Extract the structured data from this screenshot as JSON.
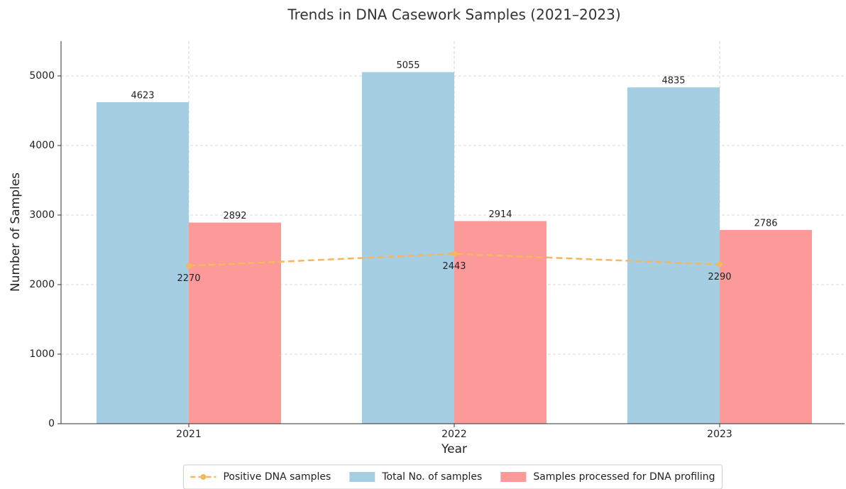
{
  "chart_data": {
    "type": "bar",
    "title": "Trends in DNA Casework Samples (2021–2023)",
    "x_label": "Year",
    "y_label": "Number of Samples",
    "categories": [
      "2021",
      "2022",
      "2023"
    ],
    "series": [
      {
        "name": "Positive DNA samples",
        "type": "line",
        "color": "#f5b75f",
        "values": [
          2270,
          2443,
          2290
        ]
      },
      {
        "name": "Total No. of samples",
        "type": "bar",
        "color": "#a6cee3",
        "values": [
          4623,
          5055,
          4835
        ]
      },
      {
        "name": "Samples processed for DNA profiling",
        "type": "bar",
        "color": "#fb9a99",
        "values": [
          2892,
          2914,
          2786
        ]
      }
    ],
    "ylim": [
      0,
      5500
    ],
    "yticks": [
      0,
      1000,
      2000,
      3000,
      4000,
      5000
    ],
    "grid": true,
    "legend": "lower center"
  }
}
